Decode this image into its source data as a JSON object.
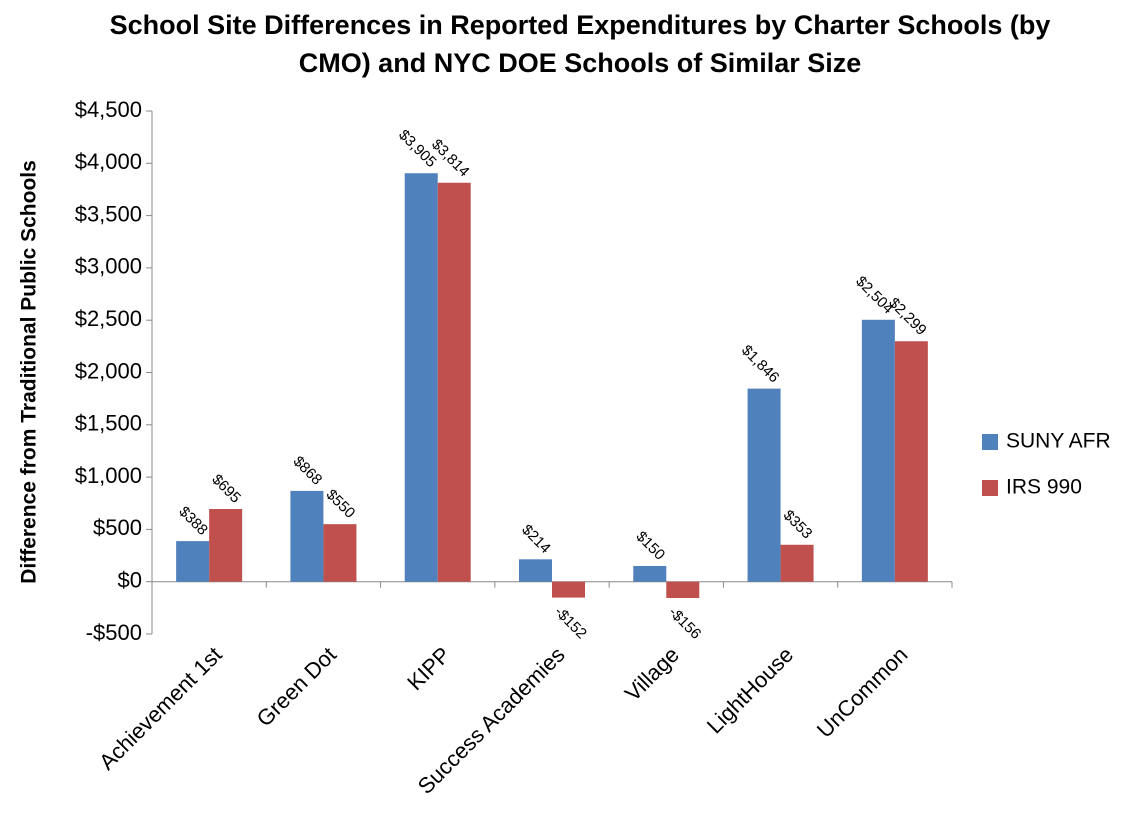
{
  "chart_data": {
    "type": "bar",
    "title": "School Site Differences in Reported Expenditures by Charter Schools (by CMO) and NYC DOE Schools of Similar Size",
    "ylabel": "Difference from Traditional Public Schools",
    "categories": [
      "Achievement 1st",
      "Green Dot",
      "KIPP",
      "Success Academies",
      "Village",
      "LightHouse",
      "UnCommon"
    ],
    "series": [
      {
        "name": "SUNY AFR",
        "color": "#4f81bd",
        "values": [
          388,
          868,
          3905,
          214,
          150,
          1846,
          2504
        ],
        "value_labels": [
          "$388",
          "$868",
          "$3,905",
          "$214",
          "$150",
          "$1,846",
          "$2,504"
        ]
      },
      {
        "name": "IRS 990",
        "color": "#c0504d",
        "values": [
          695,
          550,
          3814,
          -152,
          -156,
          353,
          2299
        ],
        "value_labels": [
          "$695",
          "$550",
          "$3,814",
          "-$152",
          "-$156",
          "$353",
          "$2,299"
        ]
      }
    ],
    "ylim": [
      -500,
      4500
    ],
    "yticks": [
      {
        "value": -500,
        "label": "-$500"
      },
      {
        "value": 0,
        "label": "$0"
      },
      {
        "value": 500,
        "label": "$500"
      },
      {
        "value": 1000,
        "label": "$1,000"
      },
      {
        "value": 1500,
        "label": "$1,500"
      },
      {
        "value": 2000,
        "label": "$2,000"
      },
      {
        "value": 2500,
        "label": "$2,500"
      },
      {
        "value": 3000,
        "label": "$3,000"
      },
      {
        "value": 3500,
        "label": "$3,500"
      },
      {
        "value": 4000,
        "label": "$4,000"
      },
      {
        "value": 4500,
        "label": "$4,500"
      }
    ],
    "grid": false,
    "legend": "right"
  }
}
